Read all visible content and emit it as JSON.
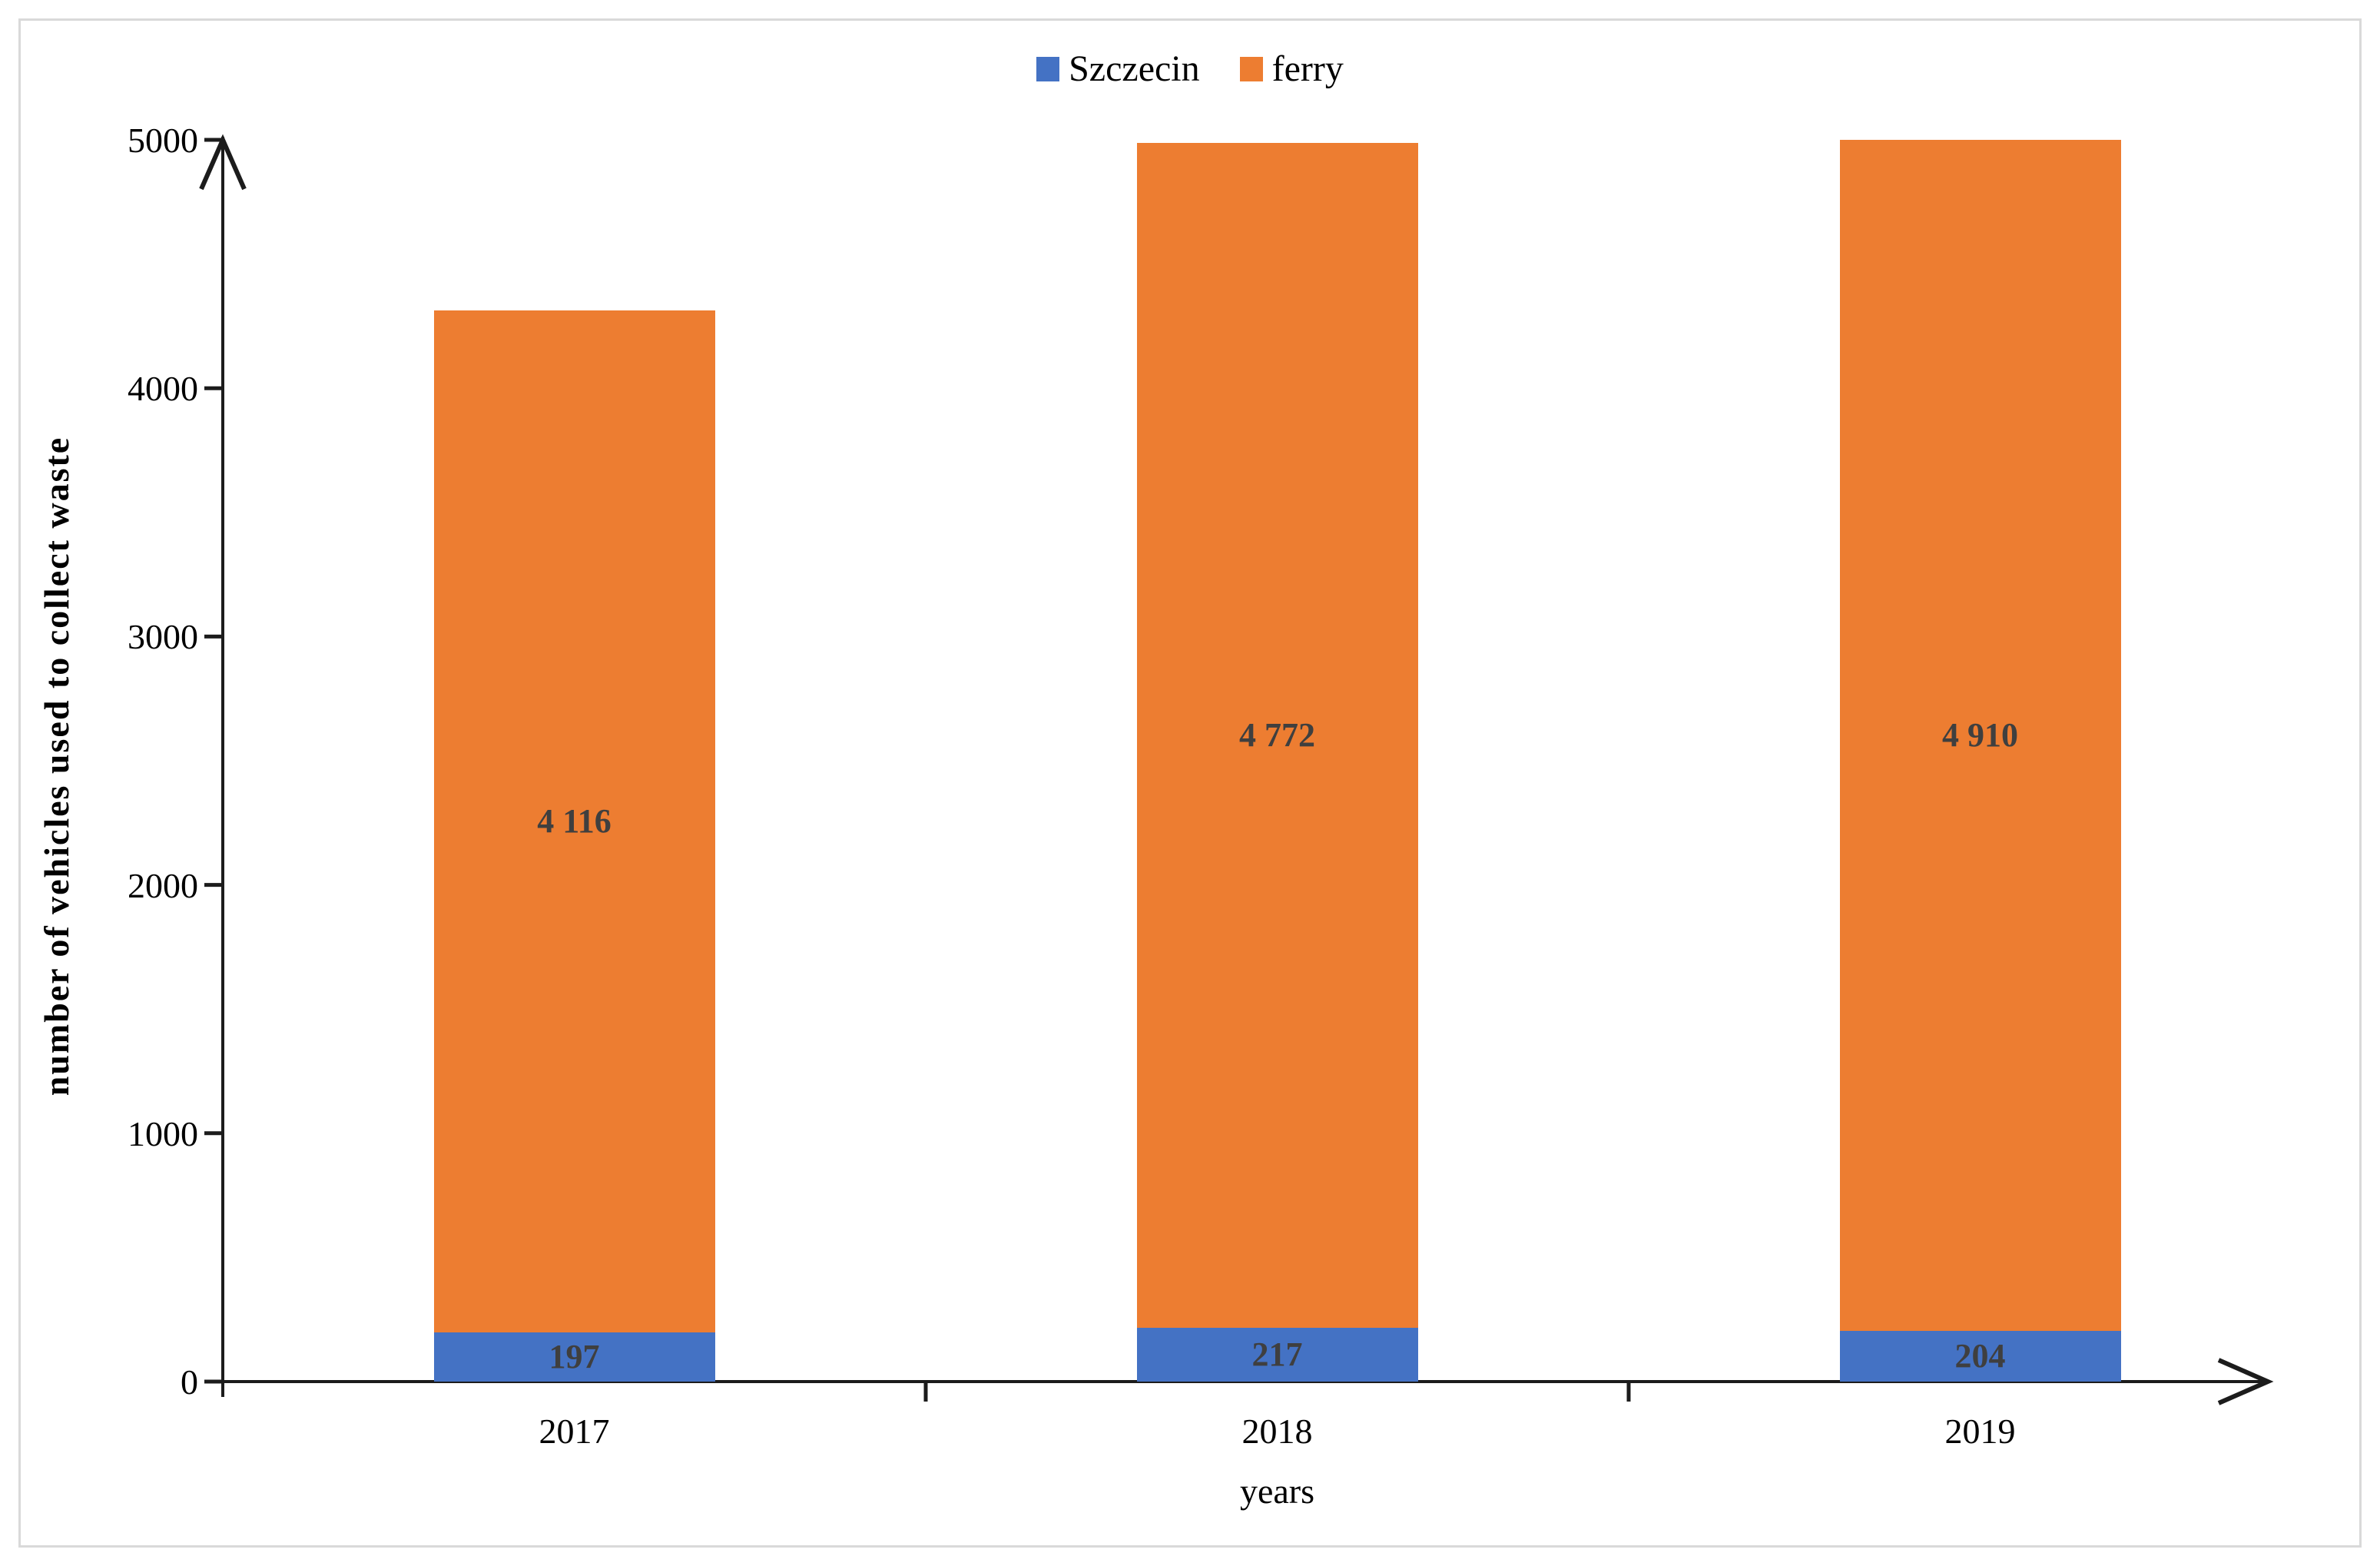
{
  "figure": {
    "background": "#ffffff",
    "border_color": "#d9d9d9"
  },
  "chart_data": {
    "type": "bar",
    "stacked": true,
    "title": "",
    "categories": [
      "2017",
      "2018",
      "2019"
    ],
    "series": [
      {
        "name": "Szczecin",
        "color": "#4472C4",
        "values": [
          197,
          217,
          204
        ],
        "labels": [
          "197",
          "217",
          "204"
        ]
      },
      {
        "name": "ferry",
        "color": "#ED7D31",
        "values": [
          4116,
          4772,
          4910
        ],
        "labels": [
          "4 116",
          "4 772",
          "4 910"
        ]
      }
    ],
    "totals": [
      4313,
      4989,
      5114
    ],
    "xlabel": "years",
    "ylabel": "number of vehicles used to collect waste",
    "ylim": [
      0,
      5000
    ],
    "yticks": [
      "0",
      "1000",
      "2000",
      "3000",
      "4000",
      "5000"
    ],
    "grid": false,
    "legend_position": "top-center",
    "data_label_color": "#3f3f3f",
    "axis_color": "#1c1c1c",
    "text_color": "#000000"
  }
}
